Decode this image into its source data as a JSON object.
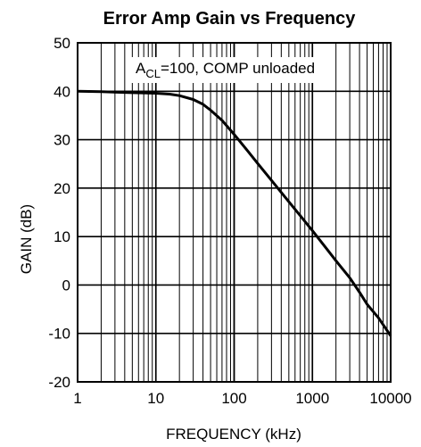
{
  "chart_data": {
    "type": "line",
    "title": "Error Amp Gain vs Frequency",
    "xlabel": "FREQUENCY (kHz)",
    "ylabel": "GAIN (dB)",
    "x_scale": "log",
    "xlim": [
      1,
      10000
    ],
    "ylim": [
      -20,
      50
    ],
    "x_ticks": [
      1,
      10,
      100,
      1000,
      10000
    ],
    "x_tick_labels": [
      "1",
      "10",
      "100",
      "1000",
      "10000"
    ],
    "y_ticks": [
      -20,
      -10,
      0,
      10,
      20,
      30,
      40,
      50
    ],
    "y_tick_labels": [
      "-20",
      "-10",
      "0",
      "10",
      "20",
      "30",
      "40",
      "50"
    ],
    "grid": true,
    "annotation": {
      "base": "A",
      "subscript": "CL",
      "rest": "=100, COMP unloaded"
    },
    "series": [
      {
        "x": [
          1,
          2,
          5,
          10,
          15,
          20,
          30,
          40,
          50,
          70,
          100,
          150,
          200,
          300,
          500,
          700,
          1000,
          1500,
          2000,
          3000,
          4000,
          5000,
          7000,
          10000
        ],
        "y": [
          40.0,
          39.9,
          39.7,
          39.6,
          39.4,
          39.1,
          38.3,
          37.3,
          36.1,
          34.0,
          31.1,
          27.6,
          25.1,
          21.6,
          17.2,
          14.3,
          11.2,
          7.6,
          5.0,
          1.5,
          -1.5,
          -4.0,
          -6.8,
          -10.5
        ]
      }
    ],
    "colors": {
      "line": "#000000",
      "grid": "#000000",
      "background": "#ffffff"
    }
  }
}
